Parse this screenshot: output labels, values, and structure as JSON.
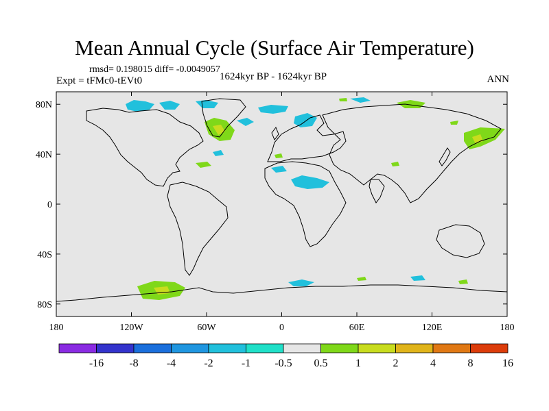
{
  "title": "Mean Annual Cycle (Surface Air Temperature)",
  "stats": "rmsd= 0.198015  diff= -0.0049057",
  "experiment": "Expt = tFMc0-tEVt0",
  "period": "1624kyr BP - 1624kyr BP",
  "season": "ANN",
  "map": {
    "lon_ticks": [
      "180",
      "120W",
      "60W",
      "0",
      "60E",
      "120E",
      "180"
    ],
    "lat_ticks": [
      "80N",
      "40N",
      "0",
      "40S",
      "80S"
    ],
    "background": "#e6e6e6"
  },
  "colorbar": {
    "colors": [
      "#8a2be2",
      "#3333cc",
      "#1a6fdc",
      "#1f96e0",
      "#21c0dc",
      "#20e0c8",
      "#e6e6e6",
      "#7fd819",
      "#c8dc1e",
      "#e0b41a",
      "#e07814",
      "#dc3c0a"
    ],
    "labels": [
      "-16",
      "-8",
      "-4",
      "-2",
      "-1",
      "-0.5",
      "0.5",
      "1",
      "2",
      "4",
      "8",
      "16"
    ]
  }
}
